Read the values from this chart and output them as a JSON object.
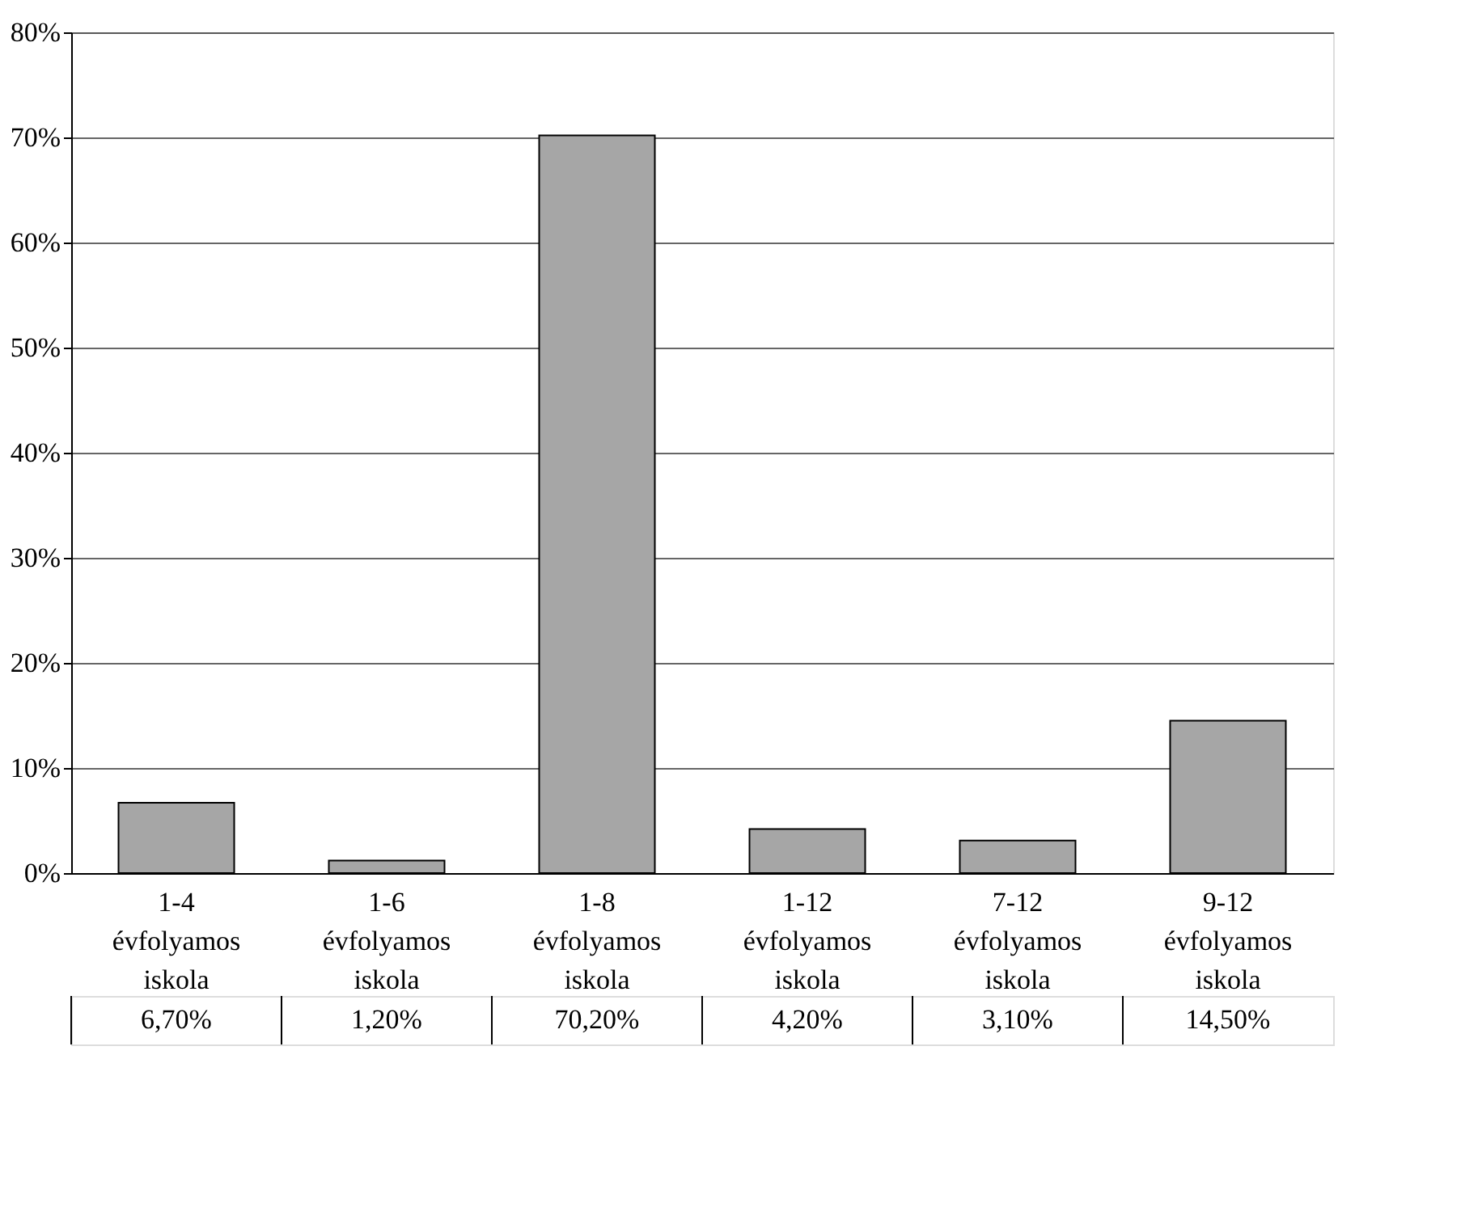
{
  "chart_data": {
    "type": "bar",
    "categories": [
      "1-4 évfolyamos iskola",
      "1-6 évfolyamos iskola",
      "1-8 évfolyamos iskola",
      "1-12 évfolyamos iskola",
      "7-12 évfolyamos iskola",
      "9-12 évfolyamos iskola"
    ],
    "values": [
      6.7,
      1.2,
      70.2,
      4.2,
      3.1,
      14.5
    ],
    "value_labels": [
      "6,70%",
      "1,20%",
      "70,20%",
      "4,20%",
      "3,10%",
      "14,50%"
    ],
    "color": "#a6a6a6",
    "ylim": [
      0,
      80
    ],
    "yticks": [
      {
        "value": 0,
        "label": "0%"
      },
      {
        "value": 10,
        "label": "10%"
      },
      {
        "value": 20,
        "label": "20%"
      },
      {
        "value": 30,
        "label": "30%"
      },
      {
        "value": 40,
        "label": "40%"
      },
      {
        "value": 50,
        "label": "50%"
      },
      {
        "value": 60,
        "label": "60%"
      },
      {
        "value": 70,
        "label": "70%"
      },
      {
        "value": 80,
        "label": "80%"
      }
    ],
    "grid": "y"
  }
}
